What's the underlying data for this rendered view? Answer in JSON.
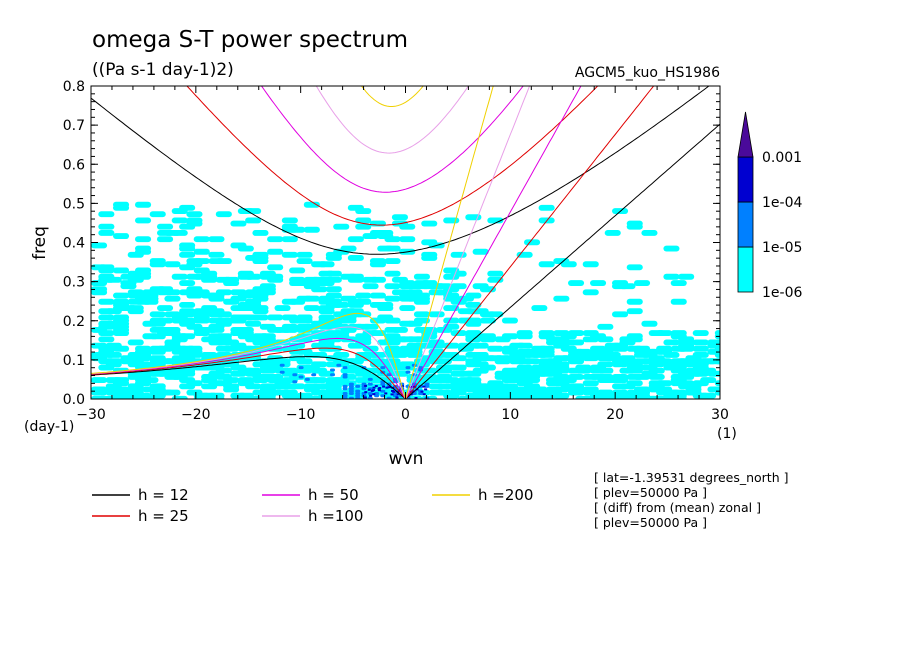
{
  "chart_data": {
    "type": "contour",
    "title": "omega S-T power spectrum",
    "subtitle": "((Pa s-1 day-1)2)",
    "model_label": "AGCM5_kuo_HS1986",
    "xlabel": "wvn",
    "ylabel": "freq",
    "x_unit": "(1)",
    "y_unit": "(day-1)",
    "xlim": [
      -30,
      30
    ],
    "ylim": [
      0,
      0.8
    ],
    "x_ticks": [
      -30,
      -20,
      -10,
      0,
      10,
      20,
      30
    ],
    "x_tick_labels": [
      "−30",
      "−20",
      "−10",
      "0",
      "10",
      "20",
      "30"
    ],
    "y_ticks": [
      0.0,
      0.1,
      0.2,
      0.3,
      0.4,
      0.5,
      0.6,
      0.7,
      0.8
    ],
    "y_tick_labels": [
      "0.0",
      "0.1",
      "0.2",
      "0.3",
      "0.4",
      "0.5",
      "0.6",
      "0.7",
      "0.8"
    ],
    "colorbar": {
      "levels": [
        "1e-06",
        "1e-05",
        "1e-04",
        "0.001"
      ],
      "colors": [
        "#00ffff",
        "#0080ff",
        "#0000d0",
        "#4a0a9a"
      ]
    },
    "dispersion_curves": [
      {
        "label": "h = 12",
        "h": 12,
        "color": "#000000"
      },
      {
        "label": "h = 25",
        "h": 25,
        "color": "#e00000"
      },
      {
        "label": "h = 50",
        "h": 50,
        "color": "#e000e0"
      },
      {
        "label": "h =100",
        "h": 100,
        "color": "#e8a0e8"
      },
      {
        "label": "h =200",
        "h": 200,
        "color": "#f0d000"
      }
    ],
    "info_lines": [
      "[ lat=-1.39531 degrees_north ]",
      "[ plev=50000 Pa ]",
      "[ (diff) from (mean) zonal ]",
      "[ plev=50000 Pa ]"
    ]
  }
}
